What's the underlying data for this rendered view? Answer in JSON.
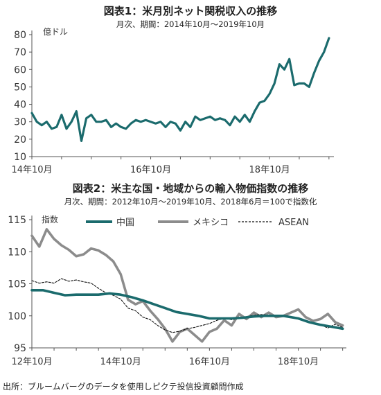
{
  "chart_data": [
    {
      "type": "line",
      "title": "図表1：米月別ネット関税収入の推移",
      "subtitle": "月次、期間：2014年10月～2019年10月",
      "ylabel": "億ドル",
      "xlabel": "",
      "ylim": [
        10,
        80
      ],
      "yticks": [
        10,
        20,
        30,
        40,
        50,
        60,
        70,
        80
      ],
      "xlim": [
        "2014-10",
        "2019-11"
      ],
      "xticks": [
        {
          "x": "2014-10",
          "label": "14年10月"
        },
        {
          "x": "2016-10",
          "label": "16年10月"
        },
        {
          "x": "2018-10",
          "label": "18年10月"
        }
      ],
      "grid": false,
      "series": [
        {
          "color": "#1b6b6d",
          "x": [
            "2014-10",
            "2014-11",
            "2014-12",
            "2015-01",
            "2015-02",
            "2015-03",
            "2015-04",
            "2015-05",
            "2015-06",
            "2015-07",
            "2015-08",
            "2015-09",
            "2015-10",
            "2015-11",
            "2015-12",
            "2016-01",
            "2016-02",
            "2016-03",
            "2016-04",
            "2016-05",
            "2016-06",
            "2016-07",
            "2016-08",
            "2016-09",
            "2016-10",
            "2016-11",
            "2016-12",
            "2017-01",
            "2017-02",
            "2017-03",
            "2017-04",
            "2017-05",
            "2017-06",
            "2017-07",
            "2017-08",
            "2017-09",
            "2017-10",
            "2017-11",
            "2017-12",
            "2018-01",
            "2018-02",
            "2018-03",
            "2018-04",
            "2018-05",
            "2018-06",
            "2018-07",
            "2018-08",
            "2018-09",
            "2018-10",
            "2018-11",
            "2018-12",
            "2019-01",
            "2019-02",
            "2019-03",
            "2019-04",
            "2019-05",
            "2019-06",
            "2019-07",
            "2019-08",
            "2019-09",
            "2019-10"
          ],
          "values": [
            35,
            30,
            28,
            30,
            26,
            27,
            34,
            26,
            30,
            36,
            19,
            32,
            34,
            30,
            30,
            31,
            27,
            29,
            27,
            26,
            29,
            31,
            30,
            31,
            30,
            29,
            30,
            27,
            30,
            29,
            25,
            30,
            27,
            33,
            31,
            32,
            33,
            31,
            32,
            31,
            28,
            33,
            30,
            34,
            30,
            36,
            41,
            42,
            46,
            52,
            63,
            60,
            66,
            51,
            52,
            52,
            50,
            58,
            65,
            70,
            78
          ]
        }
      ]
    },
    {
      "type": "line",
      "title": "図表2：米主な国・地域からの輸入物価指数の推移",
      "subtitle": "月次、期間：2012年10月～2019年10月、2018年6月＝100で指数化",
      "ylabel": "指数",
      "xlabel": "",
      "ylim": [
        95,
        115
      ],
      "yticks": [
        95,
        100,
        105,
        110,
        115
      ],
      "xlim": [
        "2012-10",
        "2019-11"
      ],
      "xticks": [
        {
          "x": "2012-10",
          "label": "12年10月"
        },
        {
          "x": "2014-10",
          "label": "14年10月"
        },
        {
          "x": "2016-10",
          "label": "16年10月"
        },
        {
          "x": "2018-10",
          "label": "18年10月"
        }
      ],
      "grid": false,
      "legend": "top",
      "series": [
        {
          "name": "中国",
          "color": "#1b6b6d",
          "style": "solid-thick",
          "points": [
            [
              "2012-10",
              104
            ],
            [
              "2013-01",
              104
            ],
            [
              "2013-04",
              103.6
            ],
            [
              "2013-07",
              103.2
            ],
            [
              "2013-10",
              103.3
            ],
            [
              "2014-01",
              103.3
            ],
            [
              "2014-04",
              103.3
            ],
            [
              "2014-07",
              103.5
            ],
            [
              "2014-10",
              103.3
            ],
            [
              "2015-01",
              102.9
            ],
            [
              "2015-04",
              102.4
            ],
            [
              "2015-07",
              101.8
            ],
            [
              "2015-10",
              101.2
            ],
            [
              "2016-01",
              100.6
            ],
            [
              "2016-04",
              100.3
            ],
            [
              "2016-07",
              100
            ],
            [
              "2016-10",
              99.6
            ],
            [
              "2017-01",
              99.6
            ],
            [
              "2017-04",
              99.6
            ],
            [
              "2017-07",
              99.7
            ],
            [
              "2017-10",
              99.9
            ],
            [
              "2018-01",
              100
            ],
            [
              "2018-06",
              100
            ],
            [
              "2018-10",
              99.6
            ],
            [
              "2019-01",
              99
            ],
            [
              "2019-04",
              98.6
            ],
            [
              "2019-07",
              98.3
            ],
            [
              "2019-10",
              98
            ]
          ]
        },
        {
          "name": "メキシコ",
          "color": "#8c8c8c",
          "style": "solid-thick",
          "points": [
            [
              "2012-10",
              112.5
            ],
            [
              "2012-12",
              110.8
            ],
            [
              "2013-02",
              113.5
            ],
            [
              "2013-04",
              112
            ],
            [
              "2013-06",
              111
            ],
            [
              "2013-08",
              110.3
            ],
            [
              "2013-10",
              109.3
            ],
            [
              "2013-12",
              109.6
            ],
            [
              "2014-02",
              110.5
            ],
            [
              "2014-04",
              110.2
            ],
            [
              "2014-06",
              109.5
            ],
            [
              "2014-08",
              108.5
            ],
            [
              "2014-10",
              106.5
            ],
            [
              "2014-12",
              102.5
            ],
            [
              "2015-02",
              101.8
            ],
            [
              "2015-04",
              102.3
            ],
            [
              "2015-06",
              100.8
            ],
            [
              "2015-08",
              99.5
            ],
            [
              "2015-10",
              98
            ],
            [
              "2015-12",
              96
            ],
            [
              "2016-02",
              97.5
            ],
            [
              "2016-04",
              98
            ],
            [
              "2016-06",
              97
            ],
            [
              "2016-08",
              96
            ],
            [
              "2016-10",
              97.5
            ],
            [
              "2016-12",
              98
            ],
            [
              "2017-02",
              99.3
            ],
            [
              "2017-04",
              98.5
            ],
            [
              "2017-06",
              100.3
            ],
            [
              "2017-08",
              99.5
            ],
            [
              "2017-10",
              100.5
            ],
            [
              "2017-12",
              99.8
            ],
            [
              "2018-02",
              100.5
            ],
            [
              "2018-04",
              99.8
            ],
            [
              "2018-06",
              100
            ],
            [
              "2018-08",
              100.5
            ],
            [
              "2018-10",
              101
            ],
            [
              "2018-12",
              99.8
            ],
            [
              "2019-02",
              99.2
            ],
            [
              "2019-04",
              99.5
            ],
            [
              "2019-06",
              100.3
            ],
            [
              "2019-08",
              99
            ],
            [
              "2019-10",
              98.5
            ]
          ]
        },
        {
          "name": "ASEAN",
          "color": "#111111",
          "style": "dashed",
          "points": [
            [
              "2012-10",
              105.5
            ],
            [
              "2012-12",
              105.1
            ],
            [
              "2013-02",
              105.3
            ],
            [
              "2013-04",
              105.1
            ],
            [
              "2013-06",
              105.8
            ],
            [
              "2013-08",
              105.4
            ],
            [
              "2013-10",
              105.6
            ],
            [
              "2013-12",
              105.3
            ],
            [
              "2014-02",
              105.1
            ],
            [
              "2014-04",
              104.3
            ],
            [
              "2014-06",
              103.6
            ],
            [
              "2014-08",
              103.2
            ],
            [
              "2014-10",
              102.6
            ],
            [
              "2014-12",
              101.2
            ],
            [
              "2015-02",
              100.8
            ],
            [
              "2015-04",
              99.8
            ],
            [
              "2015-06",
              99.4
            ],
            [
              "2015-08",
              98.5
            ],
            [
              "2015-10",
              97.8
            ],
            [
              "2015-12",
              97.4
            ],
            [
              "2016-02",
              97.6
            ],
            [
              "2016-04",
              98
            ],
            [
              "2016-06",
              98.2
            ],
            [
              "2016-08",
              98.5
            ],
            [
              "2016-10",
              98.8
            ],
            [
              "2016-12",
              99.3
            ],
            [
              "2017-02",
              99.6
            ],
            [
              "2017-04",
              99.4
            ],
            [
              "2017-06",
              99.6
            ],
            [
              "2017-08",
              99.9
            ],
            [
              "2017-10",
              100.1
            ],
            [
              "2017-12",
              100.2
            ],
            [
              "2018-02",
              100.1
            ],
            [
              "2018-04",
              100
            ],
            [
              "2018-06",
              100
            ],
            [
              "2018-08",
              99.8
            ],
            [
              "2018-10",
              99.5
            ],
            [
              "2018-12",
              99.2
            ],
            [
              "2019-02",
              98.9
            ],
            [
              "2019-04",
              98.6
            ],
            [
              "2019-06",
              98.1
            ],
            [
              "2019-08",
              98.7
            ],
            [
              "2019-10",
              98.2
            ]
          ]
        }
      ]
    }
  ],
  "source_note": "出所：ブルームバーグのデータを使用しピクテ投信投資顧問作成"
}
